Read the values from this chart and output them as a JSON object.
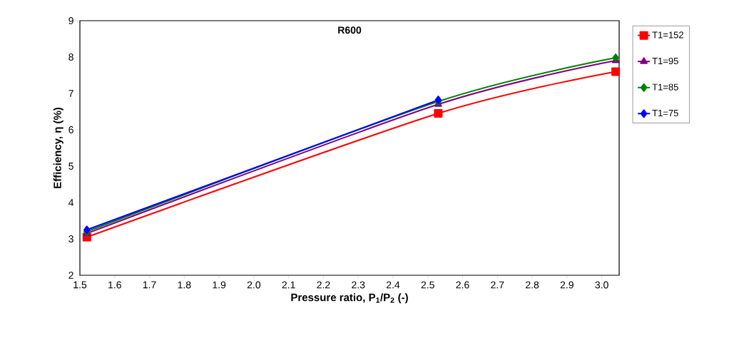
{
  "chart_data": {
    "type": "line",
    "title": "R600",
    "xlabel": "Pressure ratio, P$_{1}$/P$_{2}$ (-)",
    "ylabel": "Efficiency, η (%)",
    "x": [
      1.52,
      2.53,
      3.04
    ],
    "series": [
      {
        "name": "T1=152",
        "color": "#ff0000",
        "marker": "square",
        "values": [
          3.05,
          6.45,
          7.6
        ]
      },
      {
        "name": "T1=95",
        "color": "#800080",
        "marker": "triangle",
        "values": [
          3.15,
          6.7,
          7.9
        ]
      },
      {
        "name": "T1=85",
        "color": "#008000",
        "marker": "diamond",
        "values": [
          3.2,
          6.78,
          7.98
        ]
      },
      {
        "name": "T1=75",
        "color": "#0000ff",
        "marker": "diamond",
        "values": [
          3.25,
          6.82,
          null
        ]
      }
    ],
    "xlim": [
      1.5,
      3.05
    ],
    "xticks": [
      1.5,
      1.6,
      1.7,
      1.8,
      1.9,
      {
        "value": 2.0,
        "label": "2.0"
      },
      2.1,
      2.2,
      2.3,
      2.4,
      2.5,
      2.6,
      2.7,
      2.8,
      2.9,
      {
        "value": 3.0,
        "label": "3.0"
      }
    ],
    "ylim": [
      2,
      9
    ],
    "yticks": [
      2,
      3,
      4,
      5,
      6,
      7,
      8,
      9
    ],
    "legend": "right",
    "grid": false,
    "line_style": "solid"
  }
}
